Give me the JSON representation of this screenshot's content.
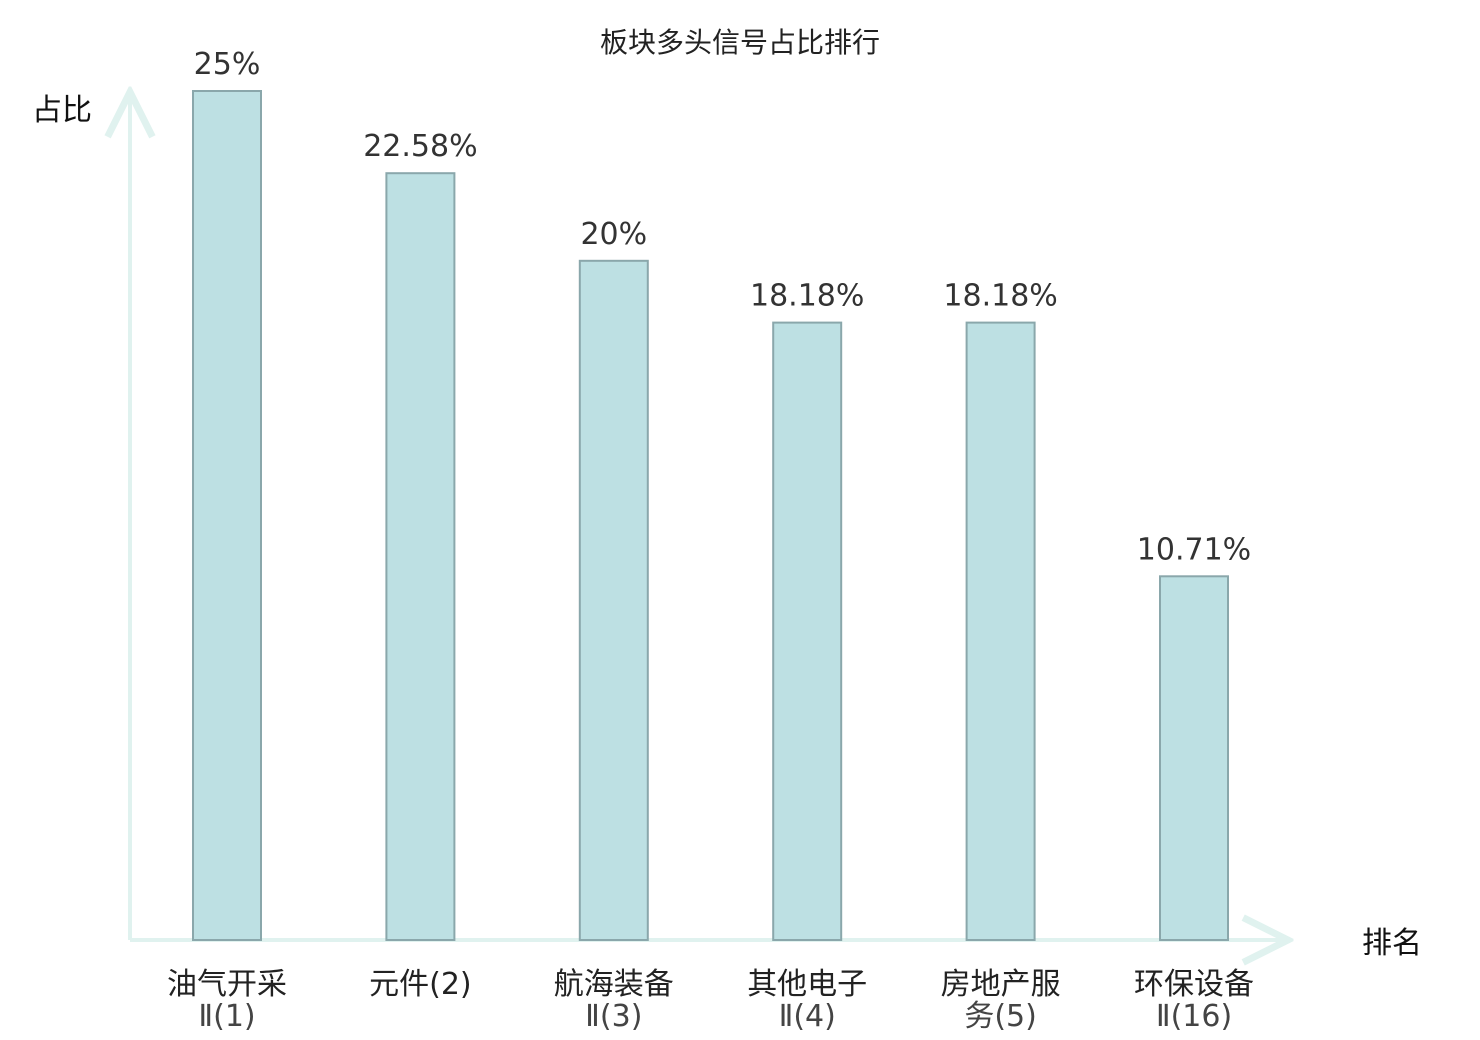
{
  "chart_data": {
    "type": "bar",
    "title": "板块多头信号占比排行",
    "ylabel": "占比",
    "xlabel": "排名",
    "ylim": [
      0,
      25
    ],
    "grid": false,
    "categories": [
      [
        "油气开采",
        "Ⅱ(1)"
      ],
      [
        "元件(2)"
      ],
      [
        "航海装备",
        "Ⅱ(3)"
      ],
      [
        "其他电子",
        "Ⅱ(4)"
      ],
      [
        "房地产服",
        "务(5)"
      ],
      [
        "环保设备",
        "Ⅱ(16)"
      ]
    ],
    "values": [
      25,
      22.58,
      20,
      18.18,
      18.18,
      10.71
    ],
    "value_labels": [
      "25%",
      "22.58%",
      "20%",
      "18.18%",
      "18.18%",
      "10.71%"
    ],
    "highlight_index": 5
  },
  "colors": {
    "bar_fill": "#bde0e3",
    "bar_stroke": "#8aa7ab",
    "axis": "#e0f2ef",
    "highlight_text": "#e8141a",
    "text": "#222222"
  }
}
